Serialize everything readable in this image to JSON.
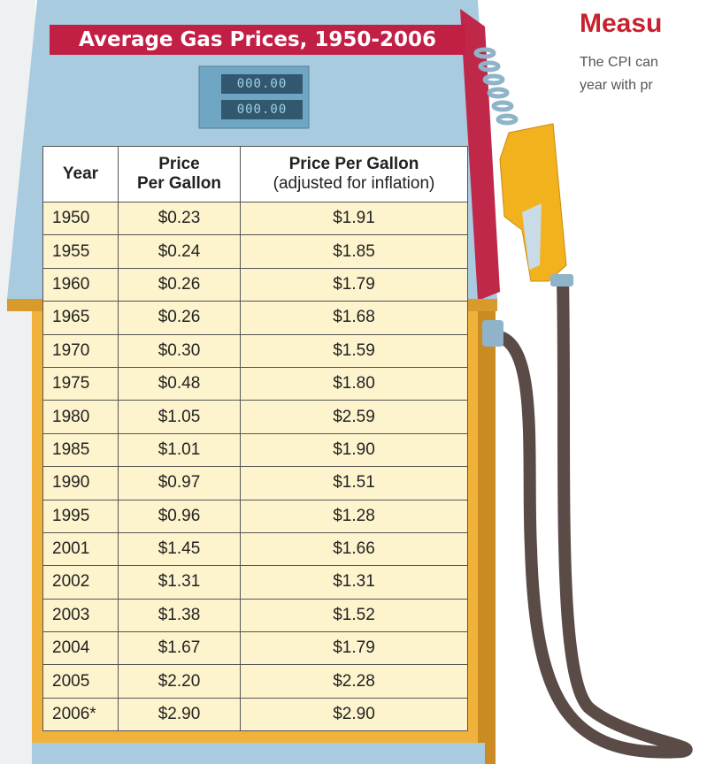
{
  "title": "Average Gas Prices, 1950-2006",
  "display": [
    "000.00",
    "000.00"
  ],
  "side": {
    "heading": "Measu",
    "lines": [
      "The CPI can",
      "year with pr"
    ]
  },
  "table": {
    "header": [
      [
        "Year"
      ],
      [
        "Price",
        "Per Gallon"
      ],
      [
        "Price Per Gallon",
        "(adjusted for inflation)"
      ]
    ],
    "rows": [
      [
        "1950",
        "$0.23",
        "$1.91"
      ],
      [
        "1955",
        "$0.24",
        "$1.85"
      ],
      [
        "1960",
        "$0.26",
        "$1.79"
      ],
      [
        "1965",
        "$0.26",
        "$1.68"
      ],
      [
        "1970",
        "$0.30",
        "$1.59"
      ],
      [
        "1975",
        "$0.48",
        "$1.80"
      ],
      [
        "1980",
        "$1.05",
        "$2.59"
      ],
      [
        "1985",
        "$1.01",
        "$1.90"
      ],
      [
        "1990",
        "$0.97",
        "$1.51"
      ],
      [
        "1995",
        "$0.96",
        "$1.28"
      ],
      [
        "2001",
        "$1.45",
        "$1.66"
      ],
      [
        "2002",
        "$1.31",
        "$1.31"
      ],
      [
        "2003",
        "$1.38",
        "$1.52"
      ],
      [
        "2004",
        "$1.67",
        "$1.79"
      ],
      [
        "2005",
        "$2.20",
        "$2.28"
      ],
      [
        "2006*",
        "$2.90",
        "$2.90"
      ]
    ]
  }
}
